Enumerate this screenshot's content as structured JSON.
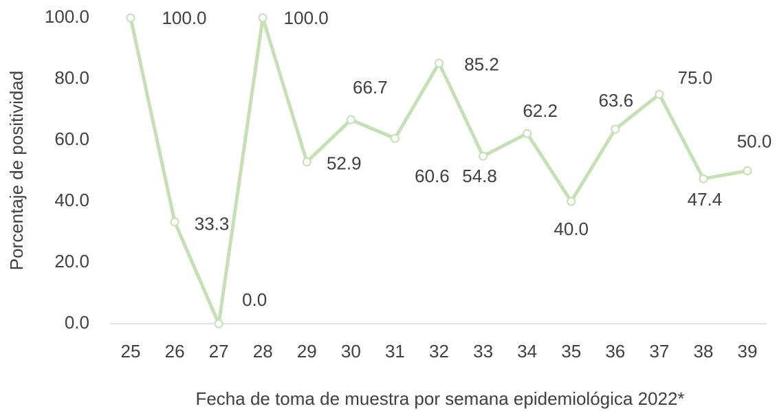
{
  "chart_data": {
    "type": "line",
    "x_label": "Fecha de toma de muestra por semana epidemiológica 2022*",
    "y_label": "Porcentaje de positividad",
    "categories": [
      "25",
      "26",
      "27",
      "28",
      "29",
      "30",
      "31",
      "32",
      "33",
      "34",
      "35",
      "36",
      "37",
      "38",
      "39"
    ],
    "values": [
      100,
      33.3,
      0,
      100,
      52.9,
      66.7,
      60.6,
      85.2,
      54.8,
      62.2,
      40,
      63.6,
      75,
      47.4,
      50
    ],
    "value_labels": [
      "100.0",
      "33.3",
      "0.0",
      "100.0",
      "52.9",
      "66.7",
      "60.6",
      "85.2",
      "54.8",
      "62.2",
      "40.0",
      "63.6",
      "75.0",
      "47.4",
      "50.0"
    ],
    "color": "#c5e0b4",
    "ylim": [
      0,
      100
    ],
    "yticks": [
      {
        "value": 0,
        "label": "0.0"
      },
      {
        "value": 20,
        "label": "20.0"
      },
      {
        "value": 40,
        "label": "40.0"
      },
      {
        "value": 60,
        "label": "60.0"
      },
      {
        "value": 80,
        "label": "80.0"
      },
      {
        "value": 100,
        "label": "100.0"
      }
    ]
  }
}
